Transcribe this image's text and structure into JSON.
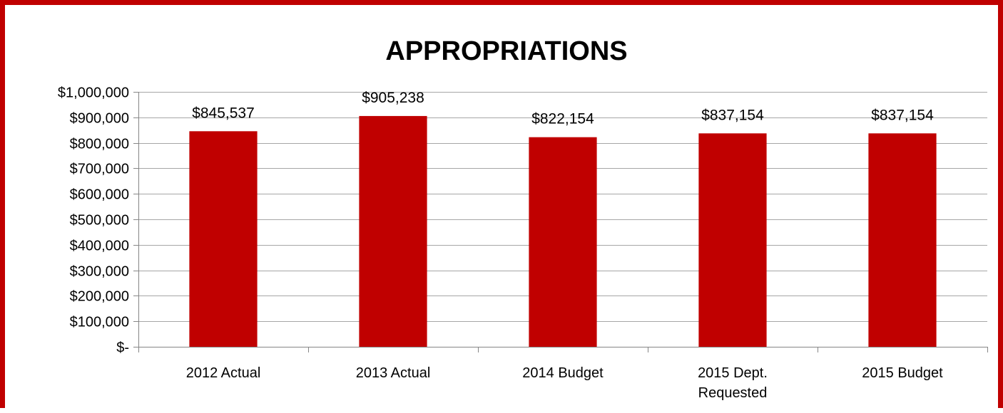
{
  "chart_data": {
    "type": "bar",
    "title": "APPROPRIATIONS",
    "categories": [
      "2012 Actual",
      "2013 Actual",
      "2014 Budget",
      "2015 Dept. Requested",
      "2015 Budget"
    ],
    "category_lines": [
      [
        "2012 Actual"
      ],
      [
        "2013 Actual"
      ],
      [
        "2014 Budget"
      ],
      [
        "2015 Dept.",
        "Requested"
      ],
      [
        "2015 Budget"
      ]
    ],
    "values": [
      845537,
      905238,
      822154,
      837154,
      837154
    ],
    "data_labels": [
      "$845,537",
      "$905,238",
      "$822,154",
      "$837,154",
      "$837,154"
    ],
    "ylim": [
      0,
      1000000
    ],
    "ytick_values": [
      0,
      100000,
      200000,
      300000,
      400000,
      500000,
      600000,
      700000,
      800000,
      900000,
      1000000
    ],
    "ytick_labels": [
      "$-",
      "$100,000",
      "$200,000",
      "$300,000",
      "$400,000",
      "$500,000",
      "$600,000",
      "$700,000",
      "$800,000",
      "$900,000",
      "$1,000,000"
    ],
    "xlabel": "",
    "ylabel": "",
    "grid": true,
    "legend": false,
    "bar_color": "#c00000",
    "frame_color": "#c00000",
    "grid_color": "#a6a6a6"
  }
}
